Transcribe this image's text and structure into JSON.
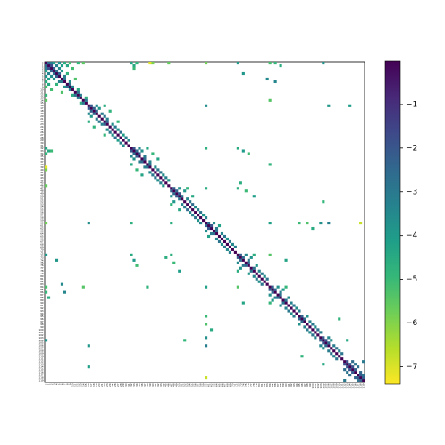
{
  "chart_data": {
    "type": "heatmap",
    "colormap": "viridis",
    "symmetric": true,
    "vlim": [
      -7.4,
      0
    ],
    "vticks": [
      {
        "value": -1,
        "label": "−1"
      },
      {
        "value": -2,
        "label": "−2"
      },
      {
        "value": -3,
        "label": "−3"
      },
      {
        "value": -4,
        "label": "−4"
      },
      {
        "value": -5,
        "label": "−5"
      },
      {
        "value": -6,
        "label": "−6"
      },
      {
        "value": -7,
        "label": "−7"
      }
    ],
    "categories": [
      "0",
      "1",
      "2",
      "3",
      "4",
      "5",
      "6",
      "7",
      "8",
      "9",
      "10",
      "11",
      "12",
      "13",
      "14",
      "15",
      "16",
      "17",
      "18",
      "19",
      "20",
      "21",
      "22",
      "23",
      "24",
      "25",
      "26",
      "27",
      "28",
      "29",
      "30",
      "31",
      "32",
      "33",
      "34",
      "35",
      "36",
      "37",
      "38",
      "39",
      "40",
      "41",
      "42",
      "43",
      "44",
      "45",
      "46",
      "47",
      "48",
      "49",
      "50",
      "51",
      "52",
      "53",
      "54",
      "55",
      "56",
      "57",
      "58",
      "59",
      "60",
      "61",
      "62",
      "63",
      "64",
      "65",
      "66",
      "67",
      "68",
      "69",
      "70",
      "71",
      "72",
      "73",
      "74",
      "75",
      "76",
      "77",
      "78",
      "79",
      "80",
      "81",
      "82",
      "83",
      "84",
      "85",
      "86",
      "87",
      "88",
      "89",
      "90",
      "91",
      "92",
      "93",
      "94",
      "95",
      "96",
      "97",
      "98",
      "99",
      "100",
      "101",
      "102",
      "103",
      "104",
      "105",
      "106",
      "107",
      "108",
      "109",
      "110",
      "111",
      "112",
      "113",
      "114",
      "115",
      "116",
      "117",
      "118",
      "119"
    ],
    "cells": [
      [
        0,
        0,
        0
      ],
      [
        1,
        1,
        0
      ],
      [
        2,
        2,
        0
      ],
      [
        3,
        3,
        0
      ],
      [
        4,
        4,
        0
      ],
      [
        5,
        5,
        0
      ],
      [
        6,
        6,
        0
      ],
      [
        7,
        7,
        0
      ],
      [
        8,
        8,
        0
      ],
      [
        9,
        9,
        0
      ],
      [
        10,
        10,
        0
      ],
      [
        11,
        11,
        0
      ],
      [
        12,
        12,
        0
      ],
      [
        13,
        13,
        0
      ],
      [
        14,
        14,
        0
      ],
      [
        15,
        15,
        0
      ],
      [
        16,
        16,
        0
      ],
      [
        17,
        17,
        0
      ],
      [
        18,
        18,
        0
      ],
      [
        19,
        19,
        0
      ],
      [
        20,
        20,
        0
      ],
      [
        21,
        21,
        0
      ],
      [
        22,
        22,
        0
      ],
      [
        23,
        23,
        0
      ],
      [
        24,
        24,
        0
      ],
      [
        25,
        25,
        0
      ],
      [
        26,
        26,
        0
      ],
      [
        27,
        27,
        0
      ],
      [
        28,
        28,
        0
      ],
      [
        29,
        29,
        0
      ],
      [
        30,
        30,
        0
      ],
      [
        31,
        31,
        0
      ],
      [
        32,
        32,
        0
      ],
      [
        33,
        33,
        0
      ],
      [
        34,
        34,
        0
      ],
      [
        35,
        35,
        0
      ],
      [
        36,
        36,
        0
      ],
      [
        37,
        37,
        0
      ],
      [
        38,
        38,
        0
      ],
      [
        39,
        39,
        0
      ],
      [
        40,
        40,
        0
      ],
      [
        41,
        41,
        0
      ],
      [
        42,
        42,
        0
      ],
      [
        43,
        43,
        0
      ],
      [
        44,
        44,
        0
      ],
      [
        45,
        45,
        0
      ],
      [
        46,
        46,
        0
      ],
      [
        47,
        47,
        0
      ],
      [
        48,
        48,
        0
      ],
      [
        49,
        49,
        0
      ],
      [
        50,
        50,
        0
      ],
      [
        51,
        51,
        0
      ],
      [
        52,
        52,
        0
      ],
      [
        53,
        53,
        0
      ],
      [
        54,
        54,
        0
      ],
      [
        55,
        55,
        0
      ],
      [
        56,
        56,
        0
      ],
      [
        57,
        57,
        0
      ],
      [
        58,
        58,
        0
      ],
      [
        59,
        59,
        0
      ],
      [
        60,
        60,
        0
      ],
      [
        61,
        61,
        0
      ],
      [
        62,
        62,
        0
      ],
      [
        63,
        63,
        0
      ],
      [
        64,
        64,
        0
      ],
      [
        65,
        65,
        0
      ],
      [
        66,
        66,
        0
      ],
      [
        67,
        67,
        0
      ],
      [
        68,
        68,
        0
      ],
      [
        69,
        69,
        0
      ],
      [
        70,
        70,
        0
      ],
      [
        71,
        71,
        0
      ],
      [
        72,
        72,
        0
      ],
      [
        73,
        73,
        0
      ],
      [
        74,
        74,
        0
      ],
      [
        75,
        75,
        0
      ],
      [
        76,
        76,
        0
      ],
      [
        77,
        77,
        0
      ],
      [
        78,
        78,
        0
      ],
      [
        79,
        79,
        0
      ],
      [
        80,
        80,
        0
      ],
      [
        81,
        81,
        0
      ],
      [
        82,
        82,
        0
      ],
      [
        83,
        83,
        0
      ],
      [
        84,
        84,
        0
      ],
      [
        85,
        85,
        0
      ],
      [
        86,
        86,
        0
      ],
      [
        87,
        87,
        0
      ],
      [
        88,
        88,
        0
      ],
      [
        89,
        89,
        0
      ],
      [
        90,
        90,
        0
      ],
      [
        91,
        91,
        0
      ],
      [
        92,
        92,
        0
      ],
      [
        93,
        93,
        0
      ],
      [
        94,
        94,
        0
      ],
      [
        95,
        95,
        0
      ],
      [
        96,
        96,
        0
      ],
      [
        97,
        97,
        0
      ],
      [
        98,
        98,
        0
      ],
      [
        99,
        99,
        0
      ],
      [
        100,
        100,
        0
      ],
      [
        101,
        101,
        0
      ],
      [
        102,
        102,
        0
      ],
      [
        103,
        103,
        0
      ],
      [
        104,
        104,
        0
      ],
      [
        105,
        105,
        0
      ],
      [
        106,
        106,
        0
      ],
      [
        107,
        107,
        0
      ],
      [
        108,
        108,
        0
      ],
      [
        109,
        109,
        0
      ],
      [
        110,
        110,
        0
      ],
      [
        111,
        111,
        0
      ],
      [
        112,
        112,
        0
      ],
      [
        113,
        113,
        0
      ],
      [
        114,
        114,
        0
      ],
      [
        115,
        115,
        0
      ],
      [
        116,
        116,
        0
      ],
      [
        117,
        117,
        0
      ],
      [
        118,
        118,
        0
      ],
      [
        119,
        119,
        0
      ],
      [
        0,
        1,
        -2.5
      ],
      [
        0,
        2,
        -3.1
      ],
      [
        0,
        3,
        -4.2
      ],
      [
        0,
        5,
        -3.8
      ],
      [
        0,
        7,
        -4.6
      ],
      [
        0,
        9,
        -5.2
      ],
      [
        0,
        12,
        -4.9
      ],
      [
        0,
        14,
        -5.5
      ],
      [
        1,
        2,
        -1.8
      ],
      [
        1,
        4,
        -3.3
      ],
      [
        1,
        6,
        -4.1
      ],
      [
        1,
        8,
        -4.4
      ],
      [
        2,
        3,
        -2.2
      ],
      [
        2,
        5,
        -3.6
      ],
      [
        2,
        10,
        -5.1
      ],
      [
        3,
        4,
        -2.7
      ],
      [
        3,
        6,
        -3.9
      ],
      [
        4,
        5,
        -2.4
      ],
      [
        4,
        8,
        -4.8
      ],
      [
        5,
        7,
        -3.2
      ],
      [
        6,
        7,
        -2.9
      ],
      [
        6,
        11,
        -5.3
      ],
      [
        7,
        9,
        -3.7
      ],
      [
        8,
        9,
        -2.6
      ],
      [
        9,
        10,
        -3.4
      ],
      [
        10,
        12,
        -4.5
      ],
      [
        11,
        12,
        -2.8
      ],
      [
        12,
        13,
        -3.1
      ],
      [
        13,
        15,
        -4.7
      ],
      [
        14,
        15,
        -3.0
      ],
      [
        0,
        32,
        -4.3
      ],
      [
        0,
        34,
        -4.8
      ],
      [
        0,
        40,
        -5.9
      ],
      [
        0,
        46,
        -5.6
      ],
      [
        1,
        33,
        -4.5
      ],
      [
        2,
        33,
        -5.0
      ],
      [
        0,
        60,
        -5.8
      ],
      [
        0,
        72,
        -4.0
      ],
      [
        0,
        84,
        -5.2
      ],
      [
        0,
        86,
        -4.9
      ],
      [
        1,
        88,
        -4.6
      ],
      [
        0,
        104,
        -3.8
      ],
      [
        0,
        39,
        -7.1
      ],
      [
        4,
        74,
        -3.9
      ],
      [
        6,
        83,
        -3.5
      ],
      [
        7,
        86,
        -3.4
      ],
      [
        14,
        84,
        -5.4
      ],
      [
        16,
        17,
        -2.1
      ],
      [
        16,
        19,
        -3.5
      ],
      [
        16,
        22,
        -4.6
      ],
      [
        17,
        18,
        -2.3
      ],
      [
        17,
        20,
        -3.9
      ],
      [
        18,
        19,
        -2.5
      ],
      [
        18,
        24,
        -4.8
      ],
      [
        19,
        21,
        -3.1
      ],
      [
        20,
        22,
        -2.9
      ],
      [
        21,
        23,
        -3.3
      ],
      [
        22,
        23,
        -2.4
      ],
      [
        22,
        27,
        -4.9
      ],
      [
        23,
        25,
        -3.6
      ],
      [
        24,
        26,
        -3.0
      ],
      [
        25,
        27,
        -3.8
      ],
      [
        26,
        28,
        -2.7
      ],
      [
        27,
        29,
        -4.1
      ],
      [
        28,
        30,
        -3.2
      ],
      [
        29,
        31,
        -3.5
      ],
      [
        16,
        60,
        -3.6
      ],
      [
        16,
        106,
        -3.9
      ],
      [
        16,
        114,
        -4.1
      ],
      [
        32,
        33,
        -2.0
      ],
      [
        32,
        35,
        -3.4
      ],
      [
        32,
        38,
        -4.4
      ],
      [
        33,
        34,
        -2.6
      ],
      [
        33,
        36,
        -3.7
      ],
      [
        34,
        35,
        -2.2
      ],
      [
        34,
        40,
        -4.9
      ],
      [
        35,
        37,
        -3.1
      ],
      [
        36,
        37,
        -2.5
      ],
      [
        36,
        42,
        -4.3
      ],
      [
        37,
        39,
        -3.3
      ],
      [
        38,
        39,
        -2.8
      ],
      [
        39,
        41,
        -3.5
      ],
      [
        40,
        42,
        -3.0
      ],
      [
        41,
        43,
        -2.9
      ],
      [
        42,
        44,
        -3.6
      ],
      [
        43,
        45,
        -3.2
      ],
      [
        44,
        46,
        -3.9
      ],
      [
        32,
        60,
        -4.7
      ],
      [
        32,
        72,
        -4.5
      ],
      [
        33,
        74,
        -4.0
      ],
      [
        34,
        76,
        -5.1
      ],
      [
        38,
        84,
        -4.8
      ],
      [
        45,
        73,
        -4.6
      ],
      [
        47,
        48,
        -2.3
      ],
      [
        47,
        50,
        -3.7
      ],
      [
        47,
        53,
        -4.8
      ],
      [
        48,
        49,
        -2.5
      ],
      [
        48,
        52,
        -3.9
      ],
      [
        49,
        50,
        -2.1
      ],
      [
        50,
        51,
        -2.8
      ],
      [
        50,
        55,
        -4.4
      ],
      [
        51,
        53,
        -3.4
      ],
      [
        52,
        54,
        -3.0
      ],
      [
        53,
        55,
        -2.6
      ],
      [
        54,
        56,
        -3.5
      ],
      [
        55,
        57,
        -3.2
      ],
      [
        56,
        58,
        -2.9
      ],
      [
        57,
        59,
        -3.8
      ],
      [
        58,
        60,
        -3.3
      ],
      [
        47,
        72,
        -4.7
      ],
      [
        48,
        75,
        -5.0
      ],
      [
        50,
        78,
        -4.1
      ],
      [
        52,
        104,
        -4.9
      ],
      [
        47,
        60,
        -4.6
      ],
      [
        60,
        61,
        -2.4
      ],
      [
        60,
        63,
        -3.6
      ],
      [
        61,
        62,
        -2.0
      ],
      [
        61,
        65,
        -4.2
      ],
      [
        62,
        64,
        -3.1
      ],
      [
        63,
        64,
        -2.7
      ],
      [
        64,
        66,
        -3.4
      ],
      [
        65,
        67,
        -2.9
      ],
      [
        66,
        68,
        -3.8
      ],
      [
        67,
        69,
        -3.0
      ],
      [
        68,
        70,
        -3.5
      ],
      [
        69,
        71,
        -3.2
      ],
      [
        60,
        95,
        -5.0
      ],
      [
        60,
        98,
        -5.3
      ],
      [
        60,
        103,
        -3.7
      ],
      [
        60,
        106,
        -3.2
      ],
      [
        60,
        118,
        -6.8
      ],
      [
        60,
        84,
        -4.2
      ],
      [
        62,
        100,
        -4.5
      ],
      [
        72,
        73,
        -2.2
      ],
      [
        72,
        75,
        -3.5
      ],
      [
        72,
        78,
        -4.6
      ],
      [
        73,
        74,
        -2.6
      ],
      [
        73,
        77,
        -3.8
      ],
      [
        74,
        76,
        -3.0
      ],
      [
        75,
        76,
        -2.4
      ],
      [
        76,
        79,
        -3.9
      ],
      [
        77,
        78,
        -2.8
      ],
      [
        78,
        80,
        -3.4
      ],
      [
        79,
        81,
        -3.1
      ],
      [
        80,
        82,
        -3.6
      ],
      [
        81,
        83,
        -2.9
      ],
      [
        72,
        84,
        -5.4
      ],
      [
        74,
        90,
        -4.3
      ],
      [
        84,
        85,
        -2.3
      ],
      [
        84,
        87,
        -3.7
      ],
      [
        84,
        90,
        -4.9
      ],
      [
        85,
        86,
        -2.5
      ],
      [
        85,
        89,
        -4.0
      ],
      [
        86,
        88,
        -3.2
      ],
      [
        87,
        88,
        -2.7
      ],
      [
        88,
        91,
        -3.5
      ],
      [
        89,
        90,
        -2.9
      ],
      [
        90,
        92,
        -3.3
      ],
      [
        91,
        93,
        -3.0
      ],
      [
        92,
        94,
        -3.6
      ],
      [
        93,
        95,
        -3.1
      ],
      [
        95,
        96,
        -2.4
      ],
      [
        95,
        98,
        -3.8
      ],
      [
        96,
        97,
        -2.6
      ],
      [
        97,
        99,
        -3.3
      ],
      [
        98,
        100,
        -3.0
      ],
      [
        99,
        101,
        -3.5
      ],
      [
        100,
        102,
        -2.8
      ],
      [
        101,
        103,
        -3.2
      ],
      [
        96,
        110,
        -4.8
      ],
      [
        103,
        104,
        -2.2
      ],
      [
        103,
        106,
        -3.4
      ],
      [
        104,
        105,
        -1.9
      ],
      [
        104,
        107,
        -3.6
      ],
      [
        105,
        106,
        -2.5
      ],
      [
        106,
        108,
        -3.1
      ],
      [
        107,
        109,
        -2.8
      ],
      [
        108,
        110,
        -3.3
      ],
      [
        109,
        111,
        -2.9
      ],
      [
        104,
        113,
        -4.4
      ],
      [
        112,
        113,
        -1.8
      ],
      [
        112,
        115,
        -2.6
      ],
      [
        113,
        114,
        -2.0
      ],
      [
        113,
        116,
        -2.9
      ],
      [
        114,
        115,
        -1.9
      ],
      [
        114,
        117,
        -2.7
      ],
      [
        115,
        116,
        -2.2
      ],
      [
        116,
        118,
        -2.5
      ],
      [
        117,
        118,
        -2.1
      ],
      [
        117,
        119,
        -2.8
      ],
      [
        118,
        119,
        -2.3
      ],
      [
        112,
        119,
        -3.0
      ]
    ]
  }
}
